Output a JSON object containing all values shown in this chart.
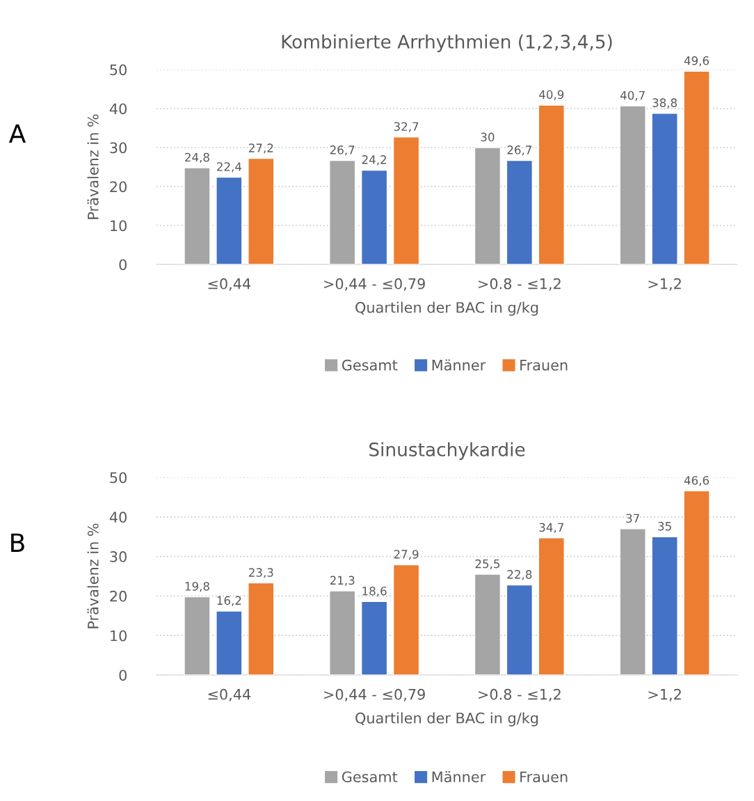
{
  "chart_data": [
    {
      "type": "bar",
      "title": "Kombinierte Arrhythmien (1,2,3,4,5)",
      "xlabel": "Quartilen der BAC in g/kg",
      "ylabel": "Prävalenz in %",
      "annotations": [
        "A"
      ],
      "categories": [
        "≤0,44",
        ">0,44 - ≤0,79",
        ">0.8 - ≤1,2",
        ">1,2"
      ],
      "series": [
        {
          "name": "Gesamt",
          "color": "#a5a5a5",
          "values": [
            24.8,
            26.7,
            30,
            40.7
          ],
          "value_labels": [
            "24,8",
            "26,7",
            "30",
            "40,7"
          ]
        },
        {
          "name": "Männer",
          "color": "#4472c4",
          "values": [
            22.4,
            24.2,
            26.7,
            38.8
          ],
          "value_labels": [
            "22,4",
            "24,2",
            "26,7",
            "38,8"
          ]
        },
        {
          "name": "Frauen",
          "color": "#ed7d31",
          "values": [
            27.2,
            32.7,
            40.9,
            49.6
          ],
          "value_labels": [
            "27,2",
            "32,7",
            "40,9",
            "49,6"
          ]
        }
      ],
      "ylim": [
        0,
        50
      ],
      "yticks": [
        0,
        10,
        20,
        30,
        40,
        50
      ],
      "grid": "y",
      "legend": "bottom"
    },
    {
      "type": "bar",
      "title": "Sinustachykardie",
      "xlabel": "Quartilen der BAC in g/kg",
      "ylabel": "Prävalenz in %",
      "annotations": [
        "B"
      ],
      "categories": [
        "≤0,44",
        ">0,44 - ≤0,79",
        ">0.8 - ≤1,2",
        ">1,2"
      ],
      "series": [
        {
          "name": "Gesamt",
          "color": "#a5a5a5",
          "values": [
            19.8,
            21.3,
            25.5,
            37
          ],
          "value_labels": [
            "19,8",
            "21,3",
            "25,5",
            "37"
          ]
        },
        {
          "name": "Männer",
          "color": "#4472c4",
          "values": [
            16.2,
            18.6,
            22.8,
            35
          ],
          "value_labels": [
            "16,2",
            "18,6",
            "22,8",
            "35"
          ]
        },
        {
          "name": "Frauen",
          "color": "#ed7d31",
          "values": [
            23.3,
            27.9,
            34.7,
            46.6
          ],
          "value_labels": [
            "23,3",
            "27,9",
            "34,7",
            "46,6"
          ]
        }
      ],
      "ylim": [
        0,
        50
      ],
      "yticks": [
        0,
        10,
        20,
        30,
        40,
        50
      ],
      "grid": "y",
      "legend": "bottom"
    }
  ]
}
